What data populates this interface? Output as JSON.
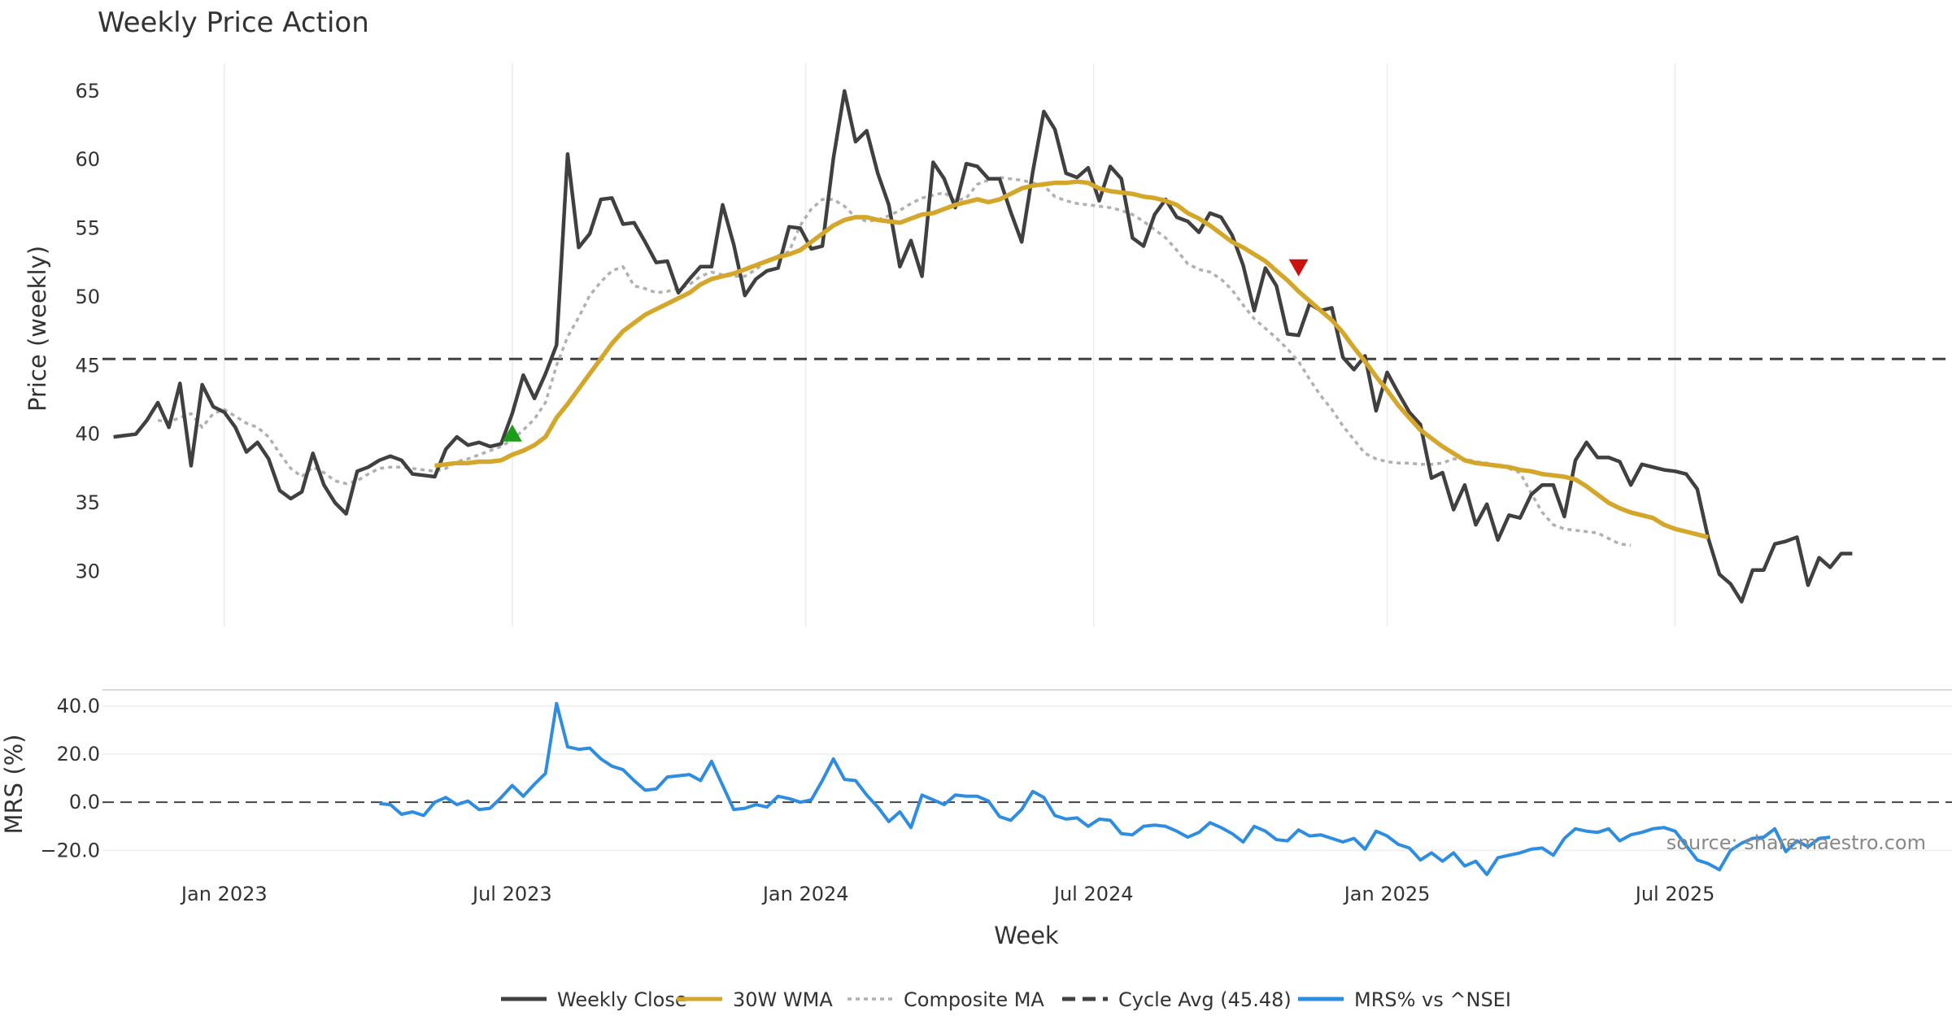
{
  "chart_data": [
    {
      "type": "line",
      "title": "Weekly Price Action",
      "ylabel": "Price (weekly)",
      "xlabel": "Week",
      "ylim": [
        26,
        67
      ],
      "yticks": [
        30,
        35,
        40,
        45,
        50,
        55,
        60,
        65
      ],
      "x_ticks": [
        "Jan 2023",
        "Jul 2023",
        "Jan 2024",
        "Jul 2024",
        "Jan 2025",
        "Jul 2025"
      ],
      "x_tick_weeks": [
        10,
        36,
        62.5,
        88.5,
        115,
        141
      ],
      "x_range": [
        -1,
        166
      ],
      "series": [
        {
          "name": "Weekly Close",
          "color": "#404040",
          "start_week": 0,
          "values": [
            39.8,
            39.9,
            40.0,
            41.0,
            42.3,
            40.5,
            43.7,
            37.7,
            43.6,
            42.0,
            41.6,
            40.5,
            38.7,
            39.4,
            38.2,
            35.9,
            35.3,
            35.8,
            38.6,
            36.3,
            35.0,
            34.2,
            37.3,
            37.6,
            38.1,
            38.4,
            38.1,
            37.1,
            37.0,
            36.9,
            38.9,
            39.8,
            39.2,
            39.4,
            39.1,
            39.3,
            41.5,
            44.3,
            42.6,
            44.4,
            46.5,
            60.4,
            53.6,
            54.6,
            57.1,
            57.2,
            55.3,
            55.4,
            54.0,
            52.5,
            52.6,
            50.3,
            51.3,
            52.2,
            52.2,
            56.7,
            53.8,
            50.1,
            51.3,
            51.9,
            52.1,
            55.1,
            55.0,
            53.5,
            53.7,
            60.1,
            65.0,
            61.3,
            62.1,
            59.0,
            56.7,
            52.2,
            54.1,
            51.5,
            59.8,
            58.6,
            56.5,
            59.7,
            59.5,
            58.6,
            58.6,
            56.2,
            54.0,
            59.1,
            63.5,
            62.2,
            59.0,
            58.7,
            59.4,
            57.0,
            59.5,
            58.6,
            54.3,
            53.7,
            56.0,
            57.1,
            55.8,
            55.5,
            54.7,
            56.1,
            55.8,
            54.5,
            52.3,
            49.0,
            52.1,
            50.8,
            47.3,
            47.2,
            49.5,
            49.0,
            49.2,
            45.6,
            44.7,
            45.7,
            41.7,
            44.5,
            43.0,
            41.6,
            40.7,
            36.8,
            37.2,
            34.5,
            36.3,
            33.4,
            34.9,
            32.3,
            34.1,
            33.9,
            35.6,
            36.3,
            36.3,
            34.0,
            38.1,
            39.4,
            38.3,
            38.3,
            38.0,
            36.3,
            37.8,
            37.6,
            37.4,
            37.3,
            37.1,
            36.0,
            32.4,
            29.8,
            29.1,
            27.8,
            30.1,
            30.1,
            32.0,
            32.2,
            32.5,
            29.0,
            31.0,
            30.3,
            31.3,
            31.3
          ]
        },
        {
          "name": "30W WMA",
          "color": "#d4a62a",
          "start_week": 29,
          "values": [
            37.7,
            37.8,
            37.9,
            37.9,
            38.0,
            38.0,
            38.1,
            38.5,
            38.8,
            39.2,
            39.8,
            41.2,
            42.2,
            43.3,
            44.4,
            45.5,
            46.6,
            47.5,
            48.1,
            48.7,
            49.1,
            49.5,
            49.9,
            50.3,
            50.9,
            51.3,
            51.5,
            51.7,
            52.0,
            52.3,
            52.6,
            52.9,
            53.1,
            53.4,
            54.0,
            54.6,
            55.2,
            55.6,
            55.8,
            55.8,
            55.6,
            55.5,
            55.4,
            55.7,
            56.0,
            56.1,
            56.4,
            56.7,
            56.9,
            57.1,
            56.9,
            57.1,
            57.5,
            57.9,
            58.1,
            58.2,
            58.3,
            58.3,
            58.4,
            58.3,
            57.9,
            57.7,
            57.6,
            57.5,
            57.3,
            57.2,
            57.0,
            56.7,
            56.1,
            55.7,
            55.2,
            54.6,
            54.0,
            53.6,
            53.1,
            52.6,
            51.9,
            51.2,
            50.4,
            49.7,
            49.0,
            48.3,
            47.4,
            46.3,
            45.3,
            44.2,
            43.2,
            42.1,
            41.2,
            40.3,
            39.7,
            39.1,
            38.6,
            38.1,
            37.9,
            37.8,
            37.7,
            37.6,
            37.4,
            37.3,
            37.1,
            37.0,
            36.9,
            36.7,
            36.2,
            35.6,
            35.0,
            34.6,
            34.3,
            34.1,
            33.9,
            33.4,
            33.1,
            32.9,
            32.7,
            32.5
          ]
        },
        {
          "name": "Composite MA",
          "color": "#b0b0b0",
          "start_week": 4,
          "values": [
            41.0,
            40.9,
            41.2,
            41.5,
            40.5,
            41.5,
            41.8,
            41.3,
            40.8,
            40.5,
            39.8,
            38.6,
            37.5,
            36.9,
            37.6,
            37.2,
            36.6,
            36.4,
            36.6,
            37.1,
            37.5,
            37.6,
            37.6,
            37.5,
            37.4,
            37.3,
            37.5,
            38.0,
            38.2,
            38.5,
            38.8,
            39.1,
            39.6,
            40.3,
            41.1,
            42.3,
            45.0,
            47.1,
            48.5,
            50.1,
            51.1,
            51.9,
            52.2,
            50.8,
            50.6,
            50.3,
            50.4,
            50.6,
            50.9,
            51.5,
            51.8,
            51.6,
            51.5,
            51.5,
            52.0,
            52.6,
            53.0,
            53.3,
            55.2,
            56.4,
            57.1,
            57.1,
            56.6,
            55.8,
            55.5,
            55.6,
            55.9,
            56.3,
            56.8,
            57.2,
            57.4,
            57.6,
            57.0,
            57.2,
            58.2,
            58.5,
            58.7,
            58.6,
            58.5,
            58.3,
            58.1,
            57.3,
            57.0,
            56.8,
            56.7,
            56.6,
            56.5,
            56.3,
            56.0,
            55.5,
            54.9,
            54.3,
            53.4,
            52.4,
            52.0,
            51.8,
            51.3,
            50.5,
            49.4,
            48.4,
            47.7,
            47.0,
            46.2,
            45.3,
            44.0,
            42.8,
            41.8,
            40.6,
            39.6,
            38.6,
            38.2,
            38.0,
            37.9,
            37.9,
            37.8,
            37.8,
            37.9,
            38.2,
            38.2,
            38.0,
            37.9,
            37.7,
            37.5,
            37.2,
            35.7,
            34.3,
            33.4,
            33.1,
            33.0,
            32.9,
            32.8,
            32.4,
            32.0,
            31.9
          ]
        },
        {
          "name": "Cycle Avg (45.48)",
          "color": "#404040",
          "constant": 45.48
        }
      ],
      "markers": [
        {
          "label": "buy",
          "week": 36,
          "value": 40.0,
          "color": "#1a9e1a",
          "shape": "up-triangle"
        },
        {
          "label": "sell",
          "week": 107,
          "value": 52.2,
          "color": "#cc1111",
          "shape": "down-triangle"
        }
      ]
    },
    {
      "type": "line",
      "ylabel": "MRS (%)",
      "ylim": [
        -30,
        46
      ],
      "yticks": [
        40.0,
        20.0,
        0.0,
        -20.0
      ],
      "ytick_labels": [
        "40.0",
        "20.0",
        "0.0",
        "−20.0"
      ],
      "zero_line": 0,
      "series": [
        {
          "name": "MRS% vs ^NSEI",
          "color": "#2e8de0",
          "start_week": 24,
          "values": [
            -0.5,
            -1.0,
            -5.0,
            -4.0,
            -5.5,
            0.0,
            2.0,
            -1.0,
            0.5,
            -3.0,
            -2.5,
            2.0,
            7.0,
            2.5,
            7.5,
            12.0,
            41.0,
            23.0,
            22.0,
            22.5,
            18.0,
            15.0,
            13.5,
            9.0,
            5.0,
            5.5,
            10.5,
            11.0,
            11.5,
            9.0,
            17.0,
            7.0,
            -3.0,
            -2.5,
            -1.0,
            -2.0,
            2.5,
            1.5,
            0.0,
            1.0,
            9.0,
            18.0,
            9.5,
            9.0,
            3.0,
            -2.0,
            -8.0,
            -4.0,
            -10.5,
            3.0,
            1.0,
            -1.0,
            3.0,
            2.5,
            2.5,
            0.5,
            -6.0,
            -7.5,
            -3.0,
            4.5,
            2.0,
            -5.5,
            -7.0,
            -6.5,
            -10.0,
            -7.0,
            -7.5,
            -13.0,
            -13.5,
            -10.0,
            -9.5,
            -10.0,
            -12.0,
            -14.5,
            -12.5,
            -8.5,
            -10.5,
            -13.0,
            -16.5,
            -10.0,
            -12.0,
            -15.5,
            -16.0,
            -11.5,
            -14.0,
            -13.5,
            -15.0,
            -16.5,
            -15.0,
            -19.5,
            -12.0,
            -14.0,
            -17.5,
            -19.0,
            -24.0,
            -21.0,
            -24.5,
            -21.0,
            -26.5,
            -24.5,
            -30.0,
            -23.0,
            -22.0,
            -21.0,
            -19.5,
            -19.0,
            -22.0,
            -15.0,
            -11.0,
            -12.0,
            -12.5,
            -11.0,
            -16.0,
            -13.5,
            -12.5,
            -11.0,
            -10.5,
            -12.0,
            -18.0,
            -24.0,
            -25.5,
            -28.0,
            -20.0,
            -17.0,
            -15.0,
            -14.5,
            -11.0,
            -20.5,
            -16.0,
            -18.5,
            -15.0,
            -14.5
          ]
        }
      ],
      "source_annotation": "source: sharemaestro.com"
    }
  ],
  "legend": [
    {
      "label": "Weekly Close",
      "color": "#404040",
      "style": "solid"
    },
    {
      "label": "30W WMA",
      "color": "#d4a62a",
      "style": "solid"
    },
    {
      "label": "Composite MA",
      "color": "#b0b0b0",
      "style": "dotted"
    },
    {
      "label": "Cycle Avg (45.48)",
      "color": "#404040",
      "style": "dashed"
    },
    {
      "label": "MRS% vs ^NSEI",
      "color": "#2e8de0",
      "style": "solid"
    }
  ]
}
